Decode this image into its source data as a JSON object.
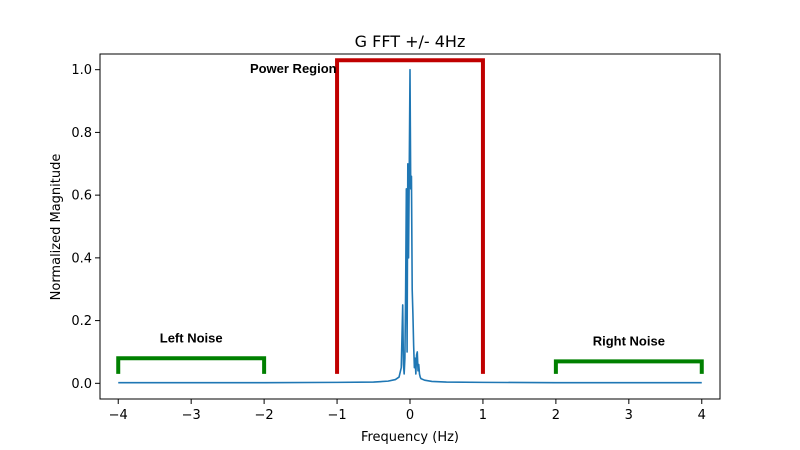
{
  "chart_data": {
    "type": "line",
    "title": "G FFT +/- 4Hz",
    "xlabel": "Frequency (Hz)",
    "ylabel": "Normalized Magnitude",
    "xlim": [
      -4.25,
      4.25
    ],
    "ylim": [
      -0.05,
      1.05
    ],
    "xticks": [
      -4,
      -3,
      -2,
      -1,
      0,
      1,
      2,
      3,
      4
    ],
    "xtick_labels": [
      "−4",
      "−3",
      "−2",
      "−1",
      "0",
      "1",
      "2",
      "3",
      "4"
    ],
    "yticks": [
      0.0,
      0.2,
      0.4,
      0.6,
      0.8,
      1.0
    ],
    "ytick_labels": [
      "0.0",
      "0.2",
      "0.4",
      "0.6",
      "0.8",
      "1.0"
    ],
    "grid": false,
    "series": [
      {
        "color": "#1f77b4",
        "x": [
          -4.0,
          -3.0,
          -2.0,
          -1.0,
          -0.5,
          -0.3,
          -0.2,
          -0.15,
          -0.12,
          -0.1,
          -0.09,
          -0.08,
          -0.07,
          -0.06,
          -0.05,
          -0.04,
          -0.03,
          -0.02,
          -0.01,
          0.0,
          0.01,
          0.02,
          0.03,
          0.04,
          0.05,
          0.06,
          0.07,
          0.08,
          0.09,
          0.1,
          0.11,
          0.12,
          0.13,
          0.14,
          0.15,
          0.2,
          0.3,
          0.5,
          1.0,
          2.0,
          3.0,
          4.0
        ],
        "y": [
          0.002,
          0.002,
          0.002,
          0.003,
          0.004,
          0.007,
          0.012,
          0.02,
          0.05,
          0.25,
          0.06,
          0.03,
          0.08,
          0.29,
          0.62,
          0.1,
          0.7,
          0.4,
          0.69,
          1.0,
          0.62,
          0.66,
          0.3,
          0.22,
          0.12,
          0.05,
          0.08,
          0.03,
          0.09,
          0.1,
          0.04,
          0.06,
          0.03,
          0.02,
          0.015,
          0.01,
          0.006,
          0.004,
          0.003,
          0.002,
          0.002,
          0.002
        ]
      }
    ],
    "annotations": [
      {
        "label": "Power Region",
        "color": "#c00000",
        "x_start": -1.0,
        "x_end": 1.0,
        "y_bottom": 0.03,
        "y_top": 1.03,
        "label_x": -1.6,
        "label_y": 0.99
      },
      {
        "label": "Left Noise",
        "color": "#008000",
        "x_start": -4.0,
        "x_end": -2.0,
        "y_bottom": 0.03,
        "y_top": 0.08,
        "label_x": -3.0,
        "label_y": 0.13
      },
      {
        "label": "Right Noise",
        "color": "#008000",
        "x_start": 2.0,
        "x_end": 4.0,
        "y_bottom": 0.03,
        "y_top": 0.07,
        "label_x": 3.0,
        "label_y": 0.12
      }
    ]
  }
}
